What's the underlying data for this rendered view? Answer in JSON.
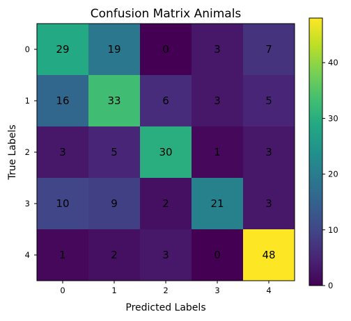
{
  "chart_data": {
    "type": "heatmap",
    "title": "Confusion Matrix Animals",
    "xlabel": "Predicted Labels",
    "ylabel": "True Labels",
    "x_categories": [
      "0",
      "1",
      "2",
      "3",
      "4"
    ],
    "y_categories": [
      "0",
      "1",
      "2",
      "3",
      "4"
    ],
    "values": [
      [
        29,
        19,
        0,
        3,
        7
      ],
      [
        16,
        33,
        6,
        3,
        5
      ],
      [
        3,
        5,
        30,
        1,
        3
      ],
      [
        10,
        9,
        2,
        21,
        3
      ],
      [
        1,
        2,
        3,
        0,
        48
      ]
    ],
    "colormap": "viridis",
    "colorbar": {
      "range": [
        0,
        48
      ],
      "ticks": [
        "0",
        "10",
        "20",
        "30",
        "40"
      ],
      "tick_values": [
        0,
        10,
        20,
        30,
        40
      ]
    },
    "annotation_color": "#000000"
  }
}
